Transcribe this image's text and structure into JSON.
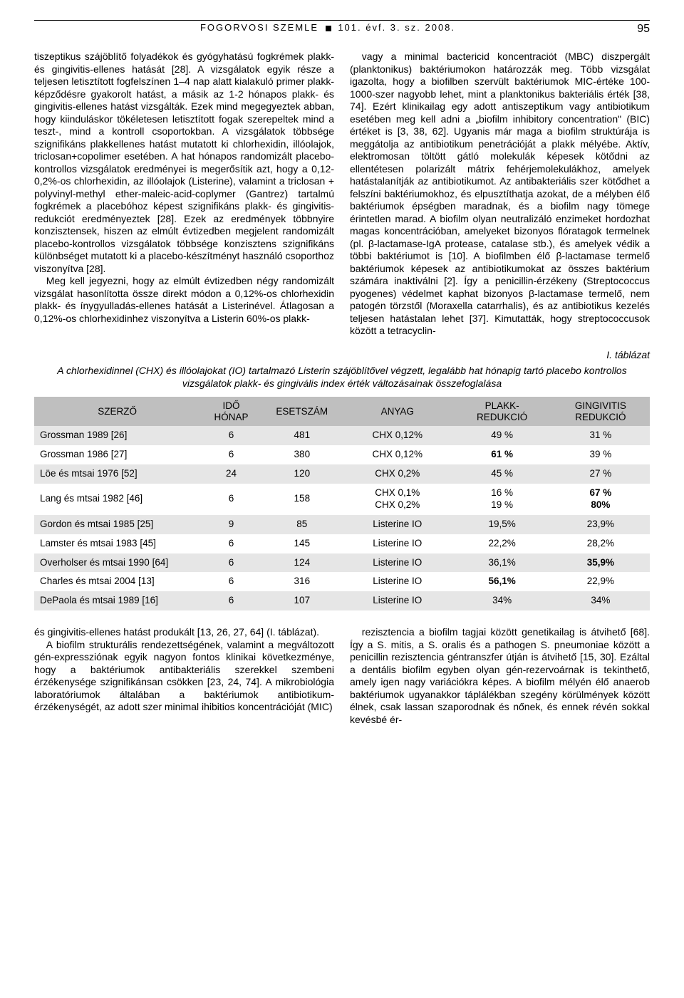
{
  "header": {
    "journal": "FOGORVOSI SZEMLE",
    "issue": "101. évf. 3. sz. 2008.",
    "page": "95"
  },
  "body_top_left": "tiszeptikus szájöblítő folyadékok és gyógyhatású fogkrémek plakk- és gingivitis-ellenes hatását [28]. A vizsgálatok egyik része a teljesen letisztított fogfelszínen 1–4 nap alatt kialakuló primer plakk-képződésre gyakorolt hatást, a másik az 1-2 hónapos plakk- és gingivitis-ellenes hatást vizsgálták. Ezek mind megegyeztek abban, hogy kiinduláskor tökéletesen letisztított fogak szerepeltek mind a teszt-, mind a kontroll csoportokban. A vizsgálatok többsége szignifikáns plakkellenes hatást mutatott ki chlorhexidin, illóolajok, triclosan+copolimer esetében. A hat hónapos randomizált placebo-kontrollos vizsgálatok eredményei is megerősítik azt, hogy a 0,12-0,2%-os chlorhexidin, az illóolajok (Listerine), valamint a triclosan + polyvinyl-methyl ether-maleic-acid-coplymer (Gantrez) tartalmú fogkrémek a placebóhoz képest szignifikáns plakk- és gingivitis-redukciót eredményeztek [28]. Ezek az eredmények többnyire konzisztensek, hiszen az elmúlt évtizedben megjelent randomizált placebo-kontrollos vizsgálatok többsége konzisztens szignifikáns különbséget mutatott ki a placebo-készítményt használó csoporthoz viszonyítva [28].",
  "body_top_left_p2": "Meg kell jegyezni, hogy az elmúlt évtizedben négy randomizált vizsgálat hasonlította össze direkt módon a 0,12%-os chlorhexidin plakk- és ínygyulladás-ellenes hatását a Listerinével. Átlagosan a 0,12%-os chlorhexidinhez viszonyítva a Listerin 60%-os plakk-",
  "body_top_right": "vagy a minimal bactericid koncentraciót (MBC) diszpergált (planktonikus) baktériumokon határozzák meg. Több vizsgálat igazolta, hogy a biofilben szervült baktériumok MIC-értéke 100-1000-szer nagyobb lehet, mint a planktonikus bakteriális érték [38, 74]. Ezért klinikailag egy adott antiszeptikum vagy antibiotikum esetében meg kell adni a „biofilm inhibitory concentration\" (BIC) értéket is [3, 38, 62]. Ugyanis már maga a biofilm struktúrája is meggátolja az antibiotikum penetrációját a plakk mélyébe. Aktív, elektromosan töltött gátló molekulák képesek kötődni az ellentétesen polarizált mátrix fehérjemolekulákhoz, amelyek hatástalanítják az antibiotikumot. Az antibakteriális szer kötődhet a felszíni baktériumokhoz, és elpusztíthatja azokat, de a mélyben élő baktériumok épségben maradnak, és a biofilm nagy tömege érintetlen marad. A biofilm olyan neutralizáló enzimeket hordozhat magas koncentrációban, amelyeket bizonyos flóratagok termelnek (pl. β-lactamase-IgA protease, catalase stb.), és amelyek védik a többi baktériumot is [10]. A biofilmben élő β-lactamase termelő baktériumok képesek az antibiotikumokat az összes baktérium számára inaktiválni [2]. Így a penicillin-érzékeny (Streptococcus pyogenes) védelmet kaphat bizonyos β-lactamase termelő, nem patogén törzstől (Moraxella catarrhalis), és az antibiotikus kezelés teljesen hatástalan lehet [37]. Kimutatták, hogy streptococcusok között a tetracyclin-",
  "table": {
    "label": "I. táblázat",
    "caption": "A chlorhexidinnel (CHX) és illóolajokat (IO) tartalmazó Listerin szájöblítővel végzett, legalább hat hónapig tartó placebo kontrollos vizsgálatok plakk- és gingivális index érték változásainak összefoglalása",
    "columns": [
      "SZERZŐ",
      "IDŐ\nHÓNAP",
      "ESETSZÁM",
      "ANYAG",
      "PLAKK-\nREDUKCIÓ",
      "GINGIVITIS\nREDUKCIÓ"
    ],
    "rows": [
      [
        "Grossman 1989 [26]",
        "6",
        "481",
        "CHX 0,12%",
        "49 %",
        "31 %"
      ],
      [
        "Grossman 1986 [27]",
        "6",
        "380",
        "CHX 0,12%",
        "61 %",
        "39 %"
      ],
      [
        "Löe és mtsai 1976 [52]",
        "24",
        "120",
        "CHX 0,2%",
        "45 %",
        "27 %"
      ],
      [
        "Lang és mtsai 1982 [46]",
        "6",
        "158",
        "CHX 0,1%\nCHX 0,2%",
        "16 %\n19 %",
        "67 %\n80%"
      ],
      [
        "Gordon és mtsai 1985 [25]",
        "9",
        "85",
        "Listerine IO",
        "19,5%",
        "23,9%"
      ],
      [
        "Lamster és mtsai 1983 [45]",
        "6",
        "145",
        "Listerine IO",
        "22,2%",
        "28,2%"
      ],
      [
        "Overholser és mtsai 1990 [64]",
        "6",
        "124",
        "Listerine IO",
        "36,1%",
        "35,9%"
      ],
      [
        "Charles és mtsai 2004 [13]",
        "6",
        "316",
        "Listerine IO",
        "56,1%",
        "22,9%"
      ],
      [
        "DePaola és mtsai 1989 [16]",
        "6",
        "107",
        "Listerine IO",
        "34%",
        "34%"
      ]
    ],
    "header_bg": "#bfbfbf",
    "row_odd_bg": "#e6e6e6",
    "row_even_bg": "#ffffff"
  },
  "body_bottom_left": "és gingivitis-ellenes hatást produkált [13, 26, 27, 64] (I. táblázat).",
  "body_bottom_left_p2": "A biofilm strukturális rendezettségének, valamint a megváltozott gén-expressziónak egyik nagyon fontos klinikai következménye, hogy a baktériumok antibakteriális szerekkel szembeni érzékenysége szignifikánsan csökken [23, 24, 74]. A mikrobiológia laboratóriumok általában a baktériumok antibiotikum-érzékenységét, az adott szer minimal ihibitios koncentrációját (MIC)",
  "body_bottom_right": "rezisztencia a biofilm tagjai között genetikailag is átvihető [68]. Így a S. mitis, a S. oralis és a pathogen S. pneumoniae között a penicillin rezisztencia géntranszfer útján is átvihető [15, 30]. Ezáltal a dentális biofilm egyben olyan gén-rezervoárnak is tekinthető, amely igen nagy variációkra képes. A biofilm mélyén élő anaerob baktériumok ugyanakkor táplálékban szegény körülmények között élnek, csak lassan szaporodnak és nőnek, és ennek révén sokkal kevésbé ér-"
}
